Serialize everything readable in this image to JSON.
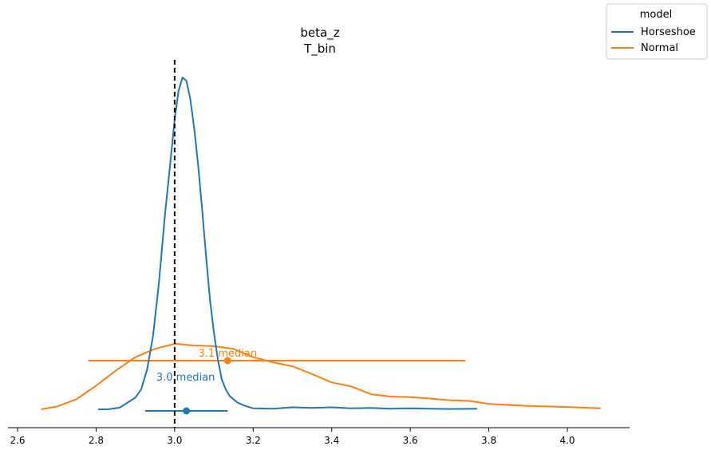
{
  "chart_data": {
    "type": "line",
    "title": "beta_z",
    "subtitle": "T_bin",
    "xlim": [
      2.6,
      4.1
    ],
    "x_ticks": [
      "2.6",
      "2.8",
      "3.0",
      "3.2",
      "3.4",
      "3.6",
      "3.8",
      "4.0"
    ],
    "reference_line": {
      "x": 3.0,
      "style": "dashed",
      "color": "#000000"
    },
    "legend": {
      "title": "model",
      "placement": "top-right"
    },
    "series": [
      {
        "name": "Horseshoe",
        "color": "#1f77b4",
        "density": {
          "x": [
            2.805,
            2.83,
            2.86,
            2.88,
            2.9,
            2.915,
            2.93,
            2.945,
            2.96,
            2.975,
            2.99,
            3.0,
            3.01,
            3.02,
            3.03,
            3.04,
            3.05,
            3.06,
            3.07,
            3.08,
            3.09,
            3.1,
            3.11,
            3.12,
            3.13,
            3.14,
            3.16,
            3.18,
            3.2,
            3.25,
            3.3,
            3.35,
            3.4,
            3.45,
            3.5,
            3.55,
            3.6,
            3.65,
            3.7,
            3.77
          ],
          "y": [
            0.0,
            0.0,
            0.005,
            0.02,
            0.035,
            0.06,
            0.12,
            0.22,
            0.38,
            0.58,
            0.75,
            0.87,
            0.955,
            0.995,
            0.985,
            0.93,
            0.84,
            0.73,
            0.6,
            0.46,
            0.33,
            0.23,
            0.15,
            0.09,
            0.06,
            0.04,
            0.02,
            0.01,
            0.003,
            0.002,
            0.006,
            0.004,
            0.006,
            0.003,
            0.004,
            0.002,
            0.003,
            0.002,
            0.001,
            0.002
          ]
        },
        "point_estimate": 3.03,
        "interval": [
          2.925,
          3.135
        ],
        "annotation": "3.0 median"
      },
      {
        "name": "Normal",
        "color": "#ff7f0e",
        "density": {
          "x": [
            2.66,
            2.7,
            2.75,
            2.8,
            2.85,
            2.9,
            2.95,
            3.0,
            3.05,
            3.1,
            3.15,
            3.2,
            3.25,
            3.3,
            3.35,
            3.4,
            3.45,
            3.5,
            3.55,
            3.6,
            3.65,
            3.7,
            3.75,
            3.8,
            3.9,
            4.0,
            4.085
          ],
          "y": [
            0.0,
            0.008,
            0.03,
            0.07,
            0.115,
            0.155,
            0.18,
            0.195,
            0.19,
            0.188,
            0.18,
            0.155,
            0.14,
            0.128,
            0.105,
            0.08,
            0.068,
            0.045,
            0.038,
            0.036,
            0.032,
            0.027,
            0.025,
            0.016,
            0.01,
            0.007,
            0.003
          ]
        },
        "point_estimate": 3.135,
        "interval": [
          2.78,
          3.74
        ],
        "annotation": "3.1 median"
      }
    ]
  }
}
